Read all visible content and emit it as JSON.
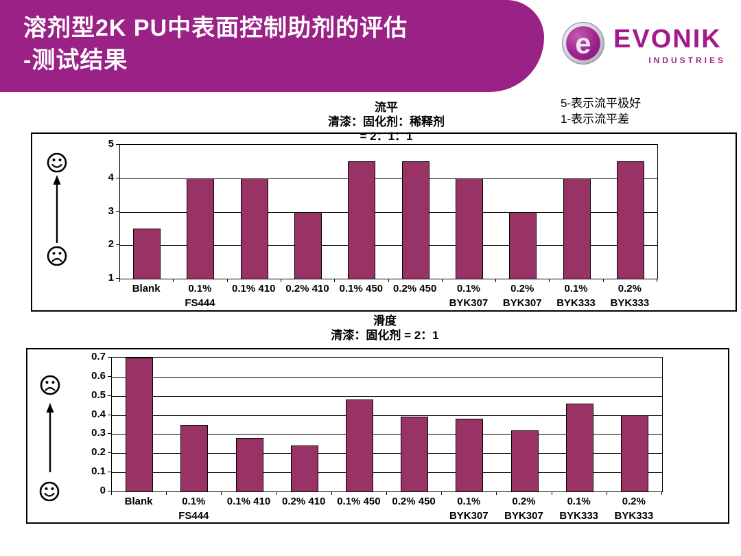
{
  "header": {
    "title_line1": "溶剂型2K PU中表面控制助剂的评估",
    "title_line2": "-测试结果",
    "bg_color": "#9A2186",
    "text_color": "#FFFFFF"
  },
  "logo": {
    "brand": "EVONIK",
    "sub": "INDUSTRIES",
    "badge_letter": "e",
    "color": "#A21A8C"
  },
  "legend_note": {
    "line1": "5-表示流平极好",
    "line2": "1-表示流平差"
  },
  "chart_data": [
    {
      "type": "bar",
      "title": "流平",
      "subtitle1": "清漆：固化剂：稀释剂",
      "subtitle2": "= 2：1：1",
      "categories": [
        [
          "Blank",
          ""
        ],
        [
          "0.1%",
          "FS444"
        ],
        [
          "0.1% 410",
          ""
        ],
        [
          "0.2% 410",
          ""
        ],
        [
          "0.1% 450",
          ""
        ],
        [
          "0.2% 450",
          ""
        ],
        [
          "0.1%",
          "BYK307"
        ],
        [
          "0.2%",
          "BYK307"
        ],
        [
          "0.1%",
          "BYK333"
        ],
        [
          "0.2%",
          "BYK333"
        ]
      ],
      "values": [
        2.5,
        4,
        4,
        3,
        4.5,
        4.5,
        4,
        3,
        4,
        4.5
      ],
      "ylim": [
        1,
        5
      ],
      "ytick_step": 1,
      "bar_color": "#993366",
      "grid": true,
      "legend": "none",
      "good_direction": "up",
      "xlabel": "",
      "ylabel": ""
    },
    {
      "type": "bar",
      "title": "滑度",
      "subtitle1": "清漆：固化剂 = 2：1",
      "subtitle2": "",
      "categories": [
        [
          "Blank",
          ""
        ],
        [
          "0.1%",
          "FS444"
        ],
        [
          "0.1% 410",
          ""
        ],
        [
          "0.2% 410",
          ""
        ],
        [
          "0.1% 450",
          ""
        ],
        [
          "0.2% 450",
          ""
        ],
        [
          "0.1%",
          "BYK307"
        ],
        [
          "0.2%",
          "BYK307"
        ],
        [
          "0.1%",
          "BYK333"
        ],
        [
          "0.2%",
          "BYK333"
        ]
      ],
      "values": [
        0.7,
        0.35,
        0.28,
        0.24,
        0.48,
        0.39,
        0.38,
        0.32,
        0.46,
        0.4
      ],
      "ylim": [
        0,
        0.7
      ],
      "ytick_step": 0.1,
      "bar_color": "#993366",
      "grid": true,
      "legend": "none",
      "good_direction": "down",
      "xlabel": "",
      "ylabel": ""
    }
  ]
}
